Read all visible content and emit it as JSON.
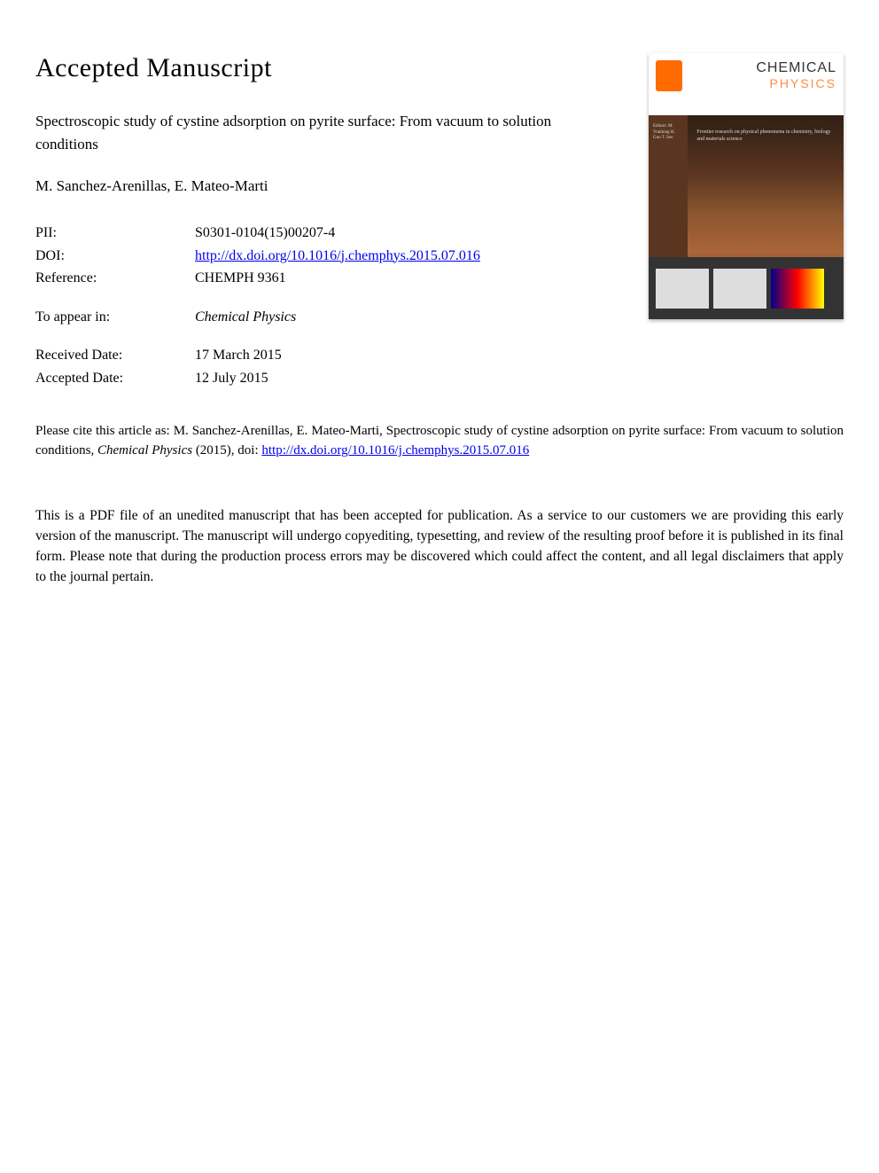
{
  "heading": "Accepted Manuscript",
  "article": {
    "title": "Spectroscopic study of cystine adsorption on pyrite surface: From vacuum to solution conditions",
    "authors": "M. Sanchez-Arenillas, E. Mateo-Marti"
  },
  "meta": {
    "pii_label": "PII:",
    "pii_value": "S0301-0104(15)00207-4",
    "doi_label": "DOI:",
    "doi_value": "http://dx.doi.org/10.1016/j.chemphys.2015.07.016",
    "reference_label": "Reference:",
    "reference_value": "CHEMPH 9361",
    "appear_label": "To appear in:",
    "appear_value": "Chemical Physics",
    "received_label": "Received Date:",
    "received_value": "17 March 2015",
    "accepted_label": "Accepted Date:",
    "accepted_value": "12 July 2015"
  },
  "citation": {
    "prefix": "Please cite this article as: M. Sanchez-Arenillas, E. Mateo-Marti, Spectroscopic study of cystine adsorption on pyrite surface: From vacuum to solution conditions, ",
    "journal": "Chemical Physics",
    "year": " (2015), doi: ",
    "link": "http://dx.doi.org/10.1016/j.chemphys.2015.07.016"
  },
  "disclaimer": "This is a PDF file of an unedited manuscript that has been accepted for publication. As a service to our customers we are providing this early version of the manuscript. The manuscript will undergo copyediting, typesetting, and review of the resulting proof before it is published in its final form. Please note that during the production process errors may be discovered which could affect the content, and all legal disclaimers that apply to the journal pertain.",
  "cover": {
    "journal_name_1": "CHEMICAL",
    "journal_name_2": "PHYSICS",
    "tagline": "Frontier research on physical phenomena in chemistry, biology and materials science",
    "editors": "Editors:\nM. Vrakking\nH. Guo\nT. Seo",
    "publisher_logo": "elsevier-logo"
  },
  "colors": {
    "link_color": "#0000ee",
    "text_color": "#000000",
    "background": "#ffffff"
  },
  "typography": {
    "heading_fontsize": 30,
    "body_fontsize": 17,
    "meta_fontsize": 16,
    "citation_fontsize": 15,
    "font_family": "Georgia, Times New Roman, serif"
  }
}
